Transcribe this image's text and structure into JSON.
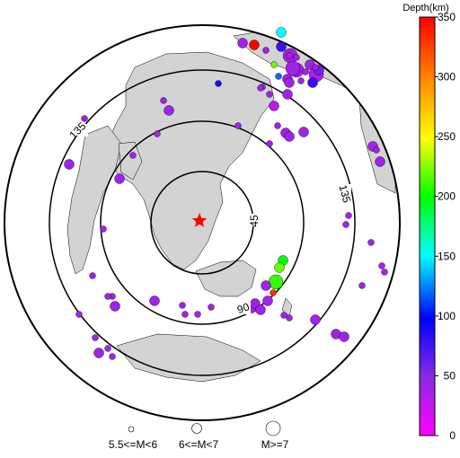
{
  "map": {
    "distance_labels": [
      {
        "text": "45",
        "ring": "inner"
      },
      {
        "text": "90",
        "ring": "middle"
      },
      {
        "text": "135",
        "ring": "outer-left"
      },
      {
        "text": "135",
        "ring": "outer-right"
      }
    ],
    "epicenter_marker": "red-star"
  },
  "colorbar": {
    "title": "Depth(km)",
    "ticks": [
      "350",
      "300",
      "250",
      "200",
      "150",
      "100",
      "50",
      "0"
    ],
    "range": [
      0,
      350
    ],
    "colors": [
      "#ff00ff",
      "#8a2be2",
      "#0000ff",
      "#00ffff",
      "#00ff00",
      "#ffff00",
      "#ff8000",
      "#ff0000"
    ]
  },
  "legend": {
    "items": [
      {
        "label": "5.5<=M<6",
        "size": "small"
      },
      {
        "label": "6<=M<7",
        "size": "medium"
      },
      {
        "label": "M>=7",
        "size": "large"
      }
    ]
  },
  "events": [
    {
      "depth": 40,
      "mag": "medium"
    },
    {
      "depth": 350,
      "mag": "medium"
    },
    {
      "depth": 40,
      "mag": "small"
    },
    {
      "depth": 150,
      "mag": "medium"
    },
    {
      "depth": 80,
      "mag": "medium"
    },
    {
      "depth": 40,
      "mag": "large"
    },
    {
      "depth": 220,
      "mag": "small"
    },
    {
      "depth": 40,
      "mag": "large"
    },
    {
      "depth": 40,
      "mag": "medium"
    },
    {
      "depth": 120,
      "mag": "small"
    },
    {
      "depth": 40,
      "mag": "medium"
    },
    {
      "depth": 40,
      "mag": "small"
    },
    {
      "depth": 30,
      "mag": "large"
    },
    {
      "depth": 60,
      "mag": "medium"
    },
    {
      "depth": 40,
      "mag": "small"
    },
    {
      "depth": 40,
      "mag": "small"
    },
    {
      "depth": 40,
      "mag": "medium"
    },
    {
      "depth": 80,
      "mag": "medium"
    },
    {
      "depth": 40,
      "mag": "large"
    },
    {
      "depth": 90,
      "mag": "small"
    },
    {
      "depth": 30,
      "mag": "medium"
    },
    {
      "depth": 40,
      "mag": "small"
    },
    {
      "depth": 40,
      "mag": "small"
    },
    {
      "depth": 40,
      "mag": "small"
    },
    {
      "depth": 40,
      "mag": "small"
    },
    {
      "depth": 40,
      "mag": "medium"
    },
    {
      "depth": 40,
      "mag": "medium"
    },
    {
      "depth": 40,
      "mag": "small"
    },
    {
      "depth": 40,
      "mag": "medium"
    },
    {
      "depth": 40,
      "mag": "medium"
    },
    {
      "depth": 40,
      "mag": "small"
    },
    {
      "depth": 40,
      "mag": "small"
    },
    {
      "depth": 40,
      "mag": "medium"
    },
    {
      "depth": 40,
      "mag": "small"
    },
    {
      "depth": 40,
      "mag": "small"
    },
    {
      "depth": 40,
      "mag": "medium"
    },
    {
      "depth": 40,
      "mag": "small"
    },
    {
      "depth": 40,
      "mag": "medium"
    },
    {
      "depth": 40,
      "mag": "small"
    },
    {
      "depth": 40,
      "mag": "small"
    },
    {
      "depth": 40,
      "mag": "small"
    },
    {
      "depth": 40,
      "mag": "medium"
    },
    {
      "depth": 40,
      "mag": "small"
    },
    {
      "depth": 40,
      "mag": "medium"
    },
    {
      "depth": 40,
      "mag": "small"
    },
    {
      "depth": 40,
      "mag": "small"
    },
    {
      "depth": 40,
      "mag": "medium"
    },
    {
      "depth": 40,
      "mag": "medium"
    },
    {
      "depth": 40,
      "mag": "small"
    },
    {
      "depth": 40,
      "mag": "small"
    },
    {
      "depth": 40,
      "mag": "medium"
    },
    {
      "depth": 40,
      "mag": "medium"
    },
    {
      "depth": 40,
      "mag": "small"
    },
    {
      "depth": 40,
      "mag": "small"
    },
    {
      "depth": 40,
      "mag": "small"
    },
    {
      "depth": 40,
      "mag": "medium"
    },
    {
      "depth": 40,
      "mag": "medium"
    },
    {
      "depth": 40,
      "mag": "medium"
    },
    {
      "depth": 40,
      "mag": "small"
    },
    {
      "depth": 40,
      "mag": "small"
    },
    {
      "depth": 40,
      "mag": "small"
    },
    {
      "depth": 40,
      "mag": "small"
    },
    {
      "depth": 40,
      "mag": "small"
    },
    {
      "depth": 40,
      "mag": "small"
    },
    {
      "depth": 40,
      "mag": "small"
    },
    {
      "depth": 40,
      "mag": "small"
    },
    {
      "depth": 40,
      "mag": "small"
    },
    {
      "depth": 40,
      "mag": "medium"
    },
    {
      "depth": 40,
      "mag": "small"
    },
    {
      "depth": 40,
      "mag": "small"
    },
    {
      "depth": 200,
      "mag": "medium"
    },
    {
      "depth": 220,
      "mag": "medium"
    },
    {
      "depth": 210,
      "mag": "large"
    },
    {
      "depth": 40,
      "mag": "medium"
    },
    {
      "depth": 330,
      "mag": "small"
    },
    {
      "depth": 40,
      "mag": "medium"
    },
    {
      "depth": 40,
      "mag": "medium"
    },
    {
      "depth": 40,
      "mag": "small"
    }
  ]
}
